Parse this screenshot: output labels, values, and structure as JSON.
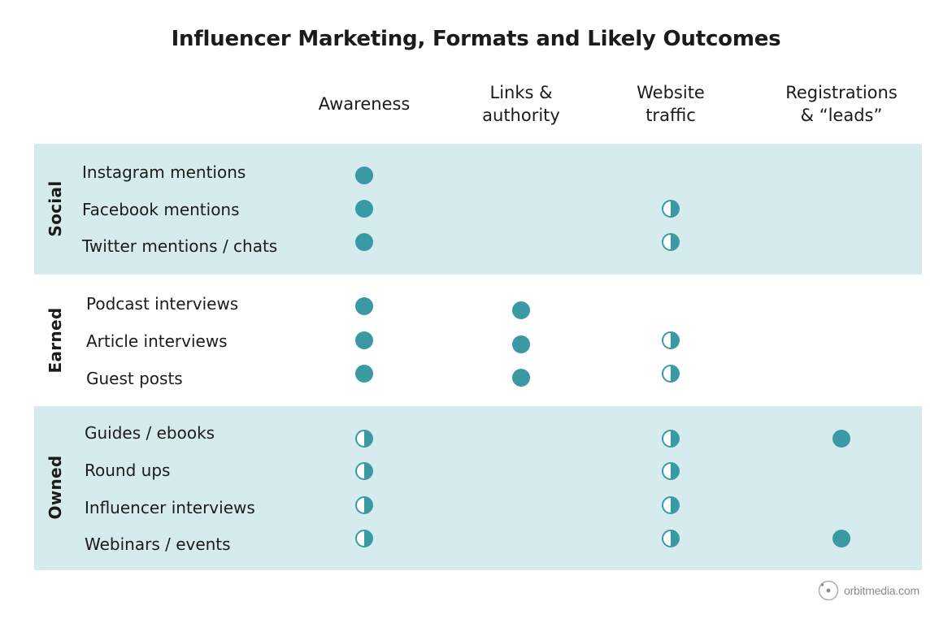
{
  "title": "Influencer Marketing, Formats and Likely Outcomes",
  "columns": [
    {
      "line1": "Awareness",
      "line2": ""
    },
    {
      "line1": "Links &",
      "line2": "authority"
    },
    {
      "line1": "Website",
      "line2": "traffic"
    },
    {
      "line1": "Registrations",
      "line2": "& “leads”"
    }
  ],
  "legend_meaning": {
    "full": "full-dot",
    "half": "half-dot"
  },
  "colors": {
    "band": "#d6ebee",
    "dot": "#3a9aa3",
    "text": "#1b1b1b"
  },
  "groups": [
    {
      "name": "Social",
      "rows": [
        {
          "label": "Instagram mentions",
          "marks": [
            "full",
            "",
            "",
            ""
          ]
        },
        {
          "label": "Facebook mentions",
          "marks": [
            "full",
            "",
            "half",
            ""
          ]
        },
        {
          "label": "Twitter mentions / chats",
          "marks": [
            "full",
            "",
            "half",
            ""
          ]
        }
      ]
    },
    {
      "name": "Earned",
      "rows": [
        {
          "label": "Podcast interviews",
          "marks": [
            "full",
            "full",
            "",
            ""
          ]
        },
        {
          "label": "Article interviews",
          "marks": [
            "full",
            "full",
            "half",
            ""
          ]
        },
        {
          "label": "Guest posts",
          "marks": [
            "full",
            "full",
            "half",
            ""
          ]
        }
      ]
    },
    {
      "name": "Owned",
      "rows": [
        {
          "label": "Guides / ebooks",
          "marks": [
            "half",
            "",
            "half",
            "full"
          ]
        },
        {
          "label": "Round ups",
          "marks": [
            "half",
            "",
            "half",
            ""
          ]
        },
        {
          "label": "Influencer interviews",
          "marks": [
            "half",
            "",
            "half",
            ""
          ]
        },
        {
          "label": "Webinars / events",
          "marks": [
            "half",
            "",
            "half",
            "full"
          ]
        }
      ]
    }
  ],
  "footer": {
    "logo_text": "orbitmedia.com",
    "logo_icon": "orbit-logo-icon"
  }
}
